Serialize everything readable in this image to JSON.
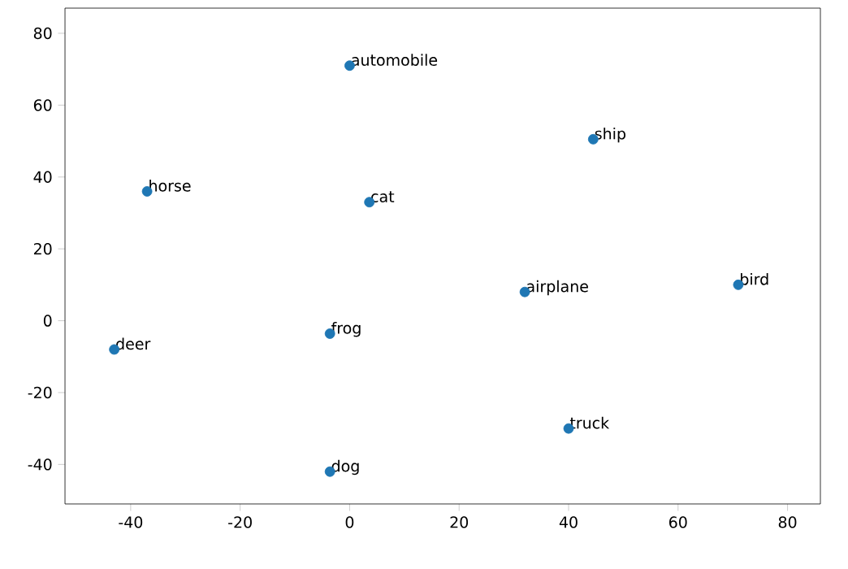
{
  "chart_data": {
    "type": "scatter",
    "x": [
      32,
      0,
      71,
      3.6,
      -43,
      -3.6,
      -37,
      44.5,
      40,
      -3.6
    ],
    "values": [
      8,
      71,
      10,
      33,
      -8,
      -3.6,
      36,
      50.5,
      -30,
      -42
    ],
    "color": "#1f77b4",
    "grid": false,
    "xlim": [
      -52,
      86
    ],
    "ylim": [
      -51,
      87
    ],
    "xticks": [
      -40,
      -20,
      0,
      20,
      40,
      60,
      80
    ],
    "yticks": [
      -40,
      -20,
      0,
      20,
      40,
      60,
      80
    ],
    "annotations": [
      {
        "text": "airplane",
        "x": 32,
        "y": 8
      },
      {
        "text": "automobile",
        "x": 0,
        "y": 71
      },
      {
        "text": "bird",
        "x": 71,
        "y": 10
      },
      {
        "text": "cat",
        "x": 3.6,
        "y": 33
      },
      {
        "text": "deer",
        "x": -43,
        "y": -8
      },
      {
        "text": "frog",
        "x": -3.6,
        "y": -3.6
      },
      {
        "text": "horse",
        "x": -37,
        "y": 36
      },
      {
        "text": "ship",
        "x": 44.5,
        "y": 50.5
      },
      {
        "text": "truck",
        "x": 40,
        "y": -30
      },
      {
        "text": "dog",
        "x": -3.6,
        "y": -42
      }
    ]
  }
}
